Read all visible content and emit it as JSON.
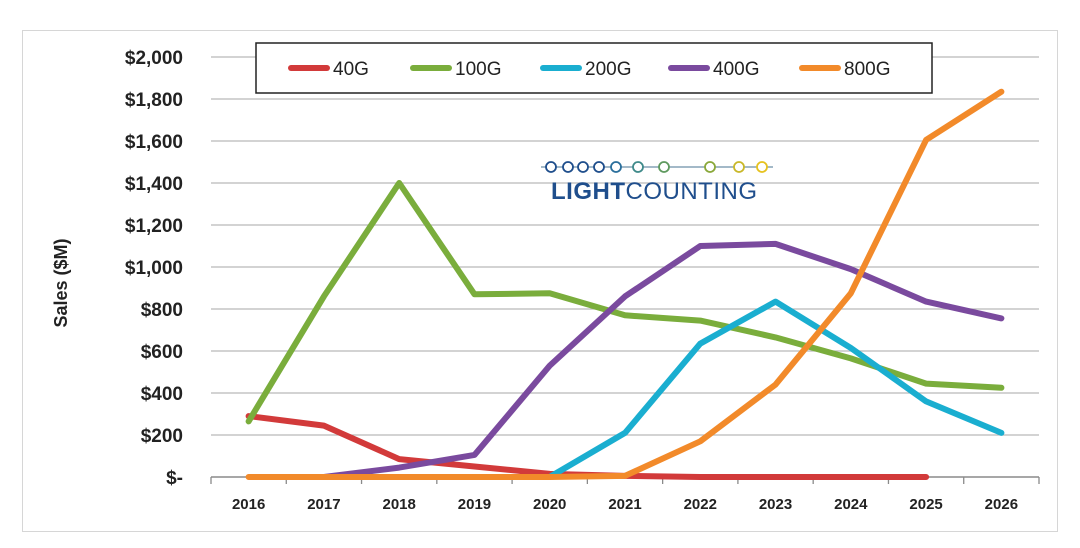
{
  "chart_data": {
    "type": "line",
    "title": "",
    "xlabel": "",
    "ylabel": "Sales ($M)",
    "ylim": [
      0,
      2000
    ],
    "x": [
      "2016",
      "2017",
      "2018",
      "2019",
      "2020",
      "2021",
      "2022",
      "2023",
      "2024",
      "2025",
      "2026"
    ],
    "y_ticks": [
      {
        "value": 0,
        "label": "$-"
      },
      {
        "value": 200,
        "label": "$200"
      },
      {
        "value": 400,
        "label": "$400"
      },
      {
        "value": 600,
        "label": "$600"
      },
      {
        "value": 800,
        "label": "$800"
      },
      {
        "value": 1000,
        "label": "$1,000"
      },
      {
        "value": 1200,
        "label": "$1,200"
      },
      {
        "value": 1400,
        "label": "$1,400"
      },
      {
        "value": 1600,
        "label": "$1,600"
      },
      {
        "value": 1800,
        "label": "$1,800"
      },
      {
        "value": 2000,
        "label": "$2,000"
      }
    ],
    "grid": true,
    "legend_position": "top",
    "series": [
      {
        "name": "40G",
        "color": "#d23a3a",
        "values": [
          290,
          245,
          85,
          50,
          15,
          5,
          0,
          0,
          0,
          0,
          null
        ]
      },
      {
        "name": "100G",
        "color": "#7aad3c",
        "values": [
          265,
          860,
          1400,
          870,
          875,
          770,
          745,
          665,
          565,
          445,
          425
        ]
      },
      {
        "name": "200G",
        "color": "#1aaed0",
        "values": [
          null,
          null,
          null,
          null,
          0,
          210,
          635,
          835,
          615,
          360,
          210
        ]
      },
      {
        "name": "400G",
        "color": "#7a4a9e",
        "values": [
          null,
          0,
          45,
          105,
          530,
          860,
          1100,
          1110,
          990,
          835,
          755
        ]
      },
      {
        "name": "800G",
        "color": "#f28a2a",
        "values": [
          0,
          0,
          0,
          0,
          0,
          5,
          170,
          440,
          875,
          1605,
          1835
        ]
      }
    ]
  },
  "brand": {
    "name_bold": "LIGHT",
    "name_rest": "COUNTING"
  }
}
